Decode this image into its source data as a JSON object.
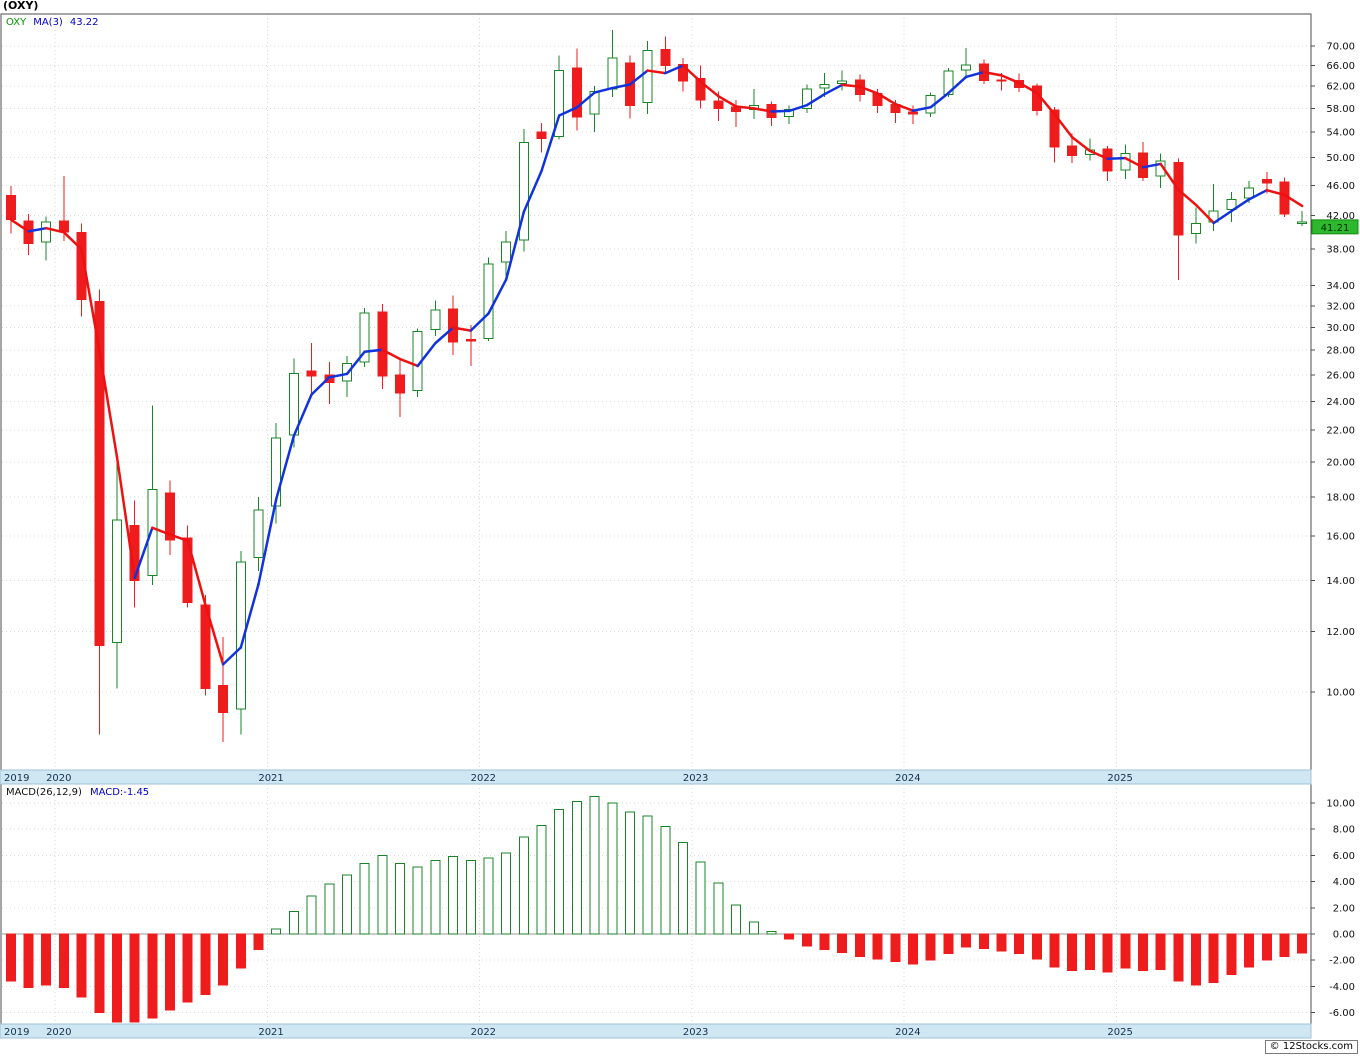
{
  "title": "(OXY)",
  "footer": "© 12Stocks.com",
  "price_panel": {
    "legend": {
      "symbol": "OXY",
      "ma_label": "MA(3)",
      "ma_value": "43.22"
    },
    "last_price_badge": "41.21"
  },
  "macd_panel": {
    "params_label": "MACD(26,12,9)",
    "value_label": "MACD:-1.45"
  },
  "x_axis_years": [
    "2019",
    "2020",
    "2021",
    "2022",
    "2023",
    "2024",
    "2025"
  ],
  "colors": {
    "up": "#1a8428",
    "down": "#ee1c1c",
    "ma_up": "#1133dd",
    "ma_down": "#ee1111",
    "badge_bg": "#2db82d",
    "badge_border": "#148a14",
    "badge_text": "#002b00",
    "band_bg": "#cfe6f3",
    "band_border": "#9fc3d6",
    "band_text": "#15314d",
    "grid": "#d9d9d9",
    "panel_border": "#4d4d4d",
    "axis_text": "#111111",
    "zero_line": "#9a9a9a",
    "legend_symbol": "#009900",
    "legend_ma": "#0000cc",
    "macd_value": "#0000cc"
  },
  "chart_data": [
    {
      "type": "candlestick",
      "title": "OXY monthly candlesticks with MA(3) overlay",
      "y_axis": {
        "scale": "log",
        "ticks": [
          70,
          66,
          62,
          58,
          54,
          50,
          46,
          42,
          38,
          34,
          32,
          30,
          28,
          26,
          24,
          22,
          20,
          18,
          16,
          14,
          12,
          10
        ]
      },
      "ma_period": 3,
      "last_close": 41.21,
      "months": [
        "2019-10",
        "2019-11",
        "2019-12",
        "2020-01",
        "2020-02",
        "2020-03",
        "2020-04",
        "2020-05",
        "2020-06",
        "2020-07",
        "2020-08",
        "2020-09",
        "2020-10",
        "2020-11",
        "2020-12",
        "2021-01",
        "2021-02",
        "2021-03",
        "2021-04",
        "2021-05",
        "2021-06",
        "2021-07",
        "2021-08",
        "2021-09",
        "2021-10",
        "2021-11",
        "2021-12",
        "2022-01",
        "2022-02",
        "2022-03",
        "2022-04",
        "2022-05",
        "2022-06",
        "2022-07",
        "2022-08",
        "2022-09",
        "2022-10",
        "2022-11",
        "2022-12",
        "2023-01",
        "2023-02",
        "2023-03",
        "2023-04",
        "2023-05",
        "2023-06",
        "2023-07",
        "2023-08",
        "2023-09",
        "2023-10",
        "2023-11",
        "2023-12",
        "2024-01",
        "2024-02",
        "2024-03",
        "2024-04",
        "2024-05",
        "2024-06",
        "2024-07",
        "2024-08",
        "2024-09",
        "2024-10",
        "2024-11",
        "2024-12",
        "2025-01",
        "2025-02",
        "2025-03",
        "2025-04",
        "2025-05",
        "2025-06",
        "2025-07",
        "2025-08",
        "2025-09",
        "2025-10",
        "2025-11"
      ],
      "ohlc": [
        [
          44.6,
          45.9,
          39.8,
          41.5
        ],
        [
          41.3,
          42.2,
          37.3,
          38.6
        ],
        [
          38.8,
          41.9,
          36.7,
          41.2
        ],
        [
          41.3,
          47.3,
          38.9,
          40.0
        ],
        [
          39.9,
          41.0,
          31.0,
          32.6
        ],
        [
          32.4,
          33.6,
          8.8,
          11.5
        ],
        [
          11.6,
          20.4,
          10.1,
          16.8
        ],
        [
          16.5,
          17.8,
          12.9,
          14.0
        ],
        [
          14.2,
          23.7,
          13.8,
          18.4
        ],
        [
          18.2,
          18.9,
          15.1,
          15.8
        ],
        [
          15.9,
          16.5,
          12.9,
          13.1
        ],
        [
          13.0,
          13.4,
          9.9,
          10.1
        ],
        [
          10.2,
          11.8,
          8.6,
          9.4
        ],
        [
          9.5,
          15.3,
          8.8,
          14.8
        ],
        [
          15.0,
          18.0,
          14.4,
          17.3
        ],
        [
          17.5,
          22.5,
          16.6,
          21.5
        ],
        [
          21.7,
          27.3,
          20.9,
          26.1
        ],
        [
          26.3,
          28.6,
          24.6,
          25.9
        ],
        [
          26.0,
          27.0,
          23.8,
          25.4
        ],
        [
          25.5,
          27.5,
          24.3,
          26.9
        ],
        [
          27.0,
          31.8,
          26.6,
          31.3
        ],
        [
          31.4,
          32.2,
          24.9,
          25.9
        ],
        [
          26.0,
          27.2,
          22.9,
          24.6
        ],
        [
          24.8,
          29.9,
          24.3,
          29.6
        ],
        [
          29.8,
          32.5,
          29.2,
          31.6
        ],
        [
          31.7,
          33.0,
          27.6,
          28.7
        ],
        [
          28.9,
          30.2,
          26.7,
          28.8
        ],
        [
          29.0,
          37.0,
          28.8,
          36.3
        ],
        [
          36.5,
          40.1,
          35.0,
          38.8
        ],
        [
          39.0,
          54.5,
          37.7,
          52.3
        ],
        [
          54.0,
          55.5,
          50.8,
          53.0
        ],
        [
          53.3,
          68.0,
          52.8,
          65.0
        ],
        [
          65.5,
          69.5,
          54.3,
          56.5
        ],
        [
          57.0,
          62.0,
          54.0,
          61.0
        ],
        [
          61.5,
          73.5,
          60.0,
          67.5
        ],
        [
          66.5,
          68.0,
          56.3,
          58.5
        ],
        [
          59.0,
          71.0,
          57.0,
          69.0
        ],
        [
          69.3,
          72.0,
          64.5,
          66.0
        ],
        [
          66.2,
          67.5,
          61.0,
          63.0
        ],
        [
          63.5,
          66.0,
          58.0,
          59.5
        ],
        [
          59.3,
          61.0,
          55.8,
          58.0
        ],
        [
          58.2,
          59.5,
          54.8,
          57.5
        ],
        [
          57.8,
          61.5,
          56.2,
          58.5
        ],
        [
          58.7,
          59.2,
          55.0,
          56.4
        ],
        [
          56.6,
          58.5,
          55.3,
          57.8
        ],
        [
          58.0,
          62.3,
          57.2,
          61.5
        ],
        [
          61.7,
          64.5,
          60.0,
          62.3
        ],
        [
          62.5,
          65.0,
          61.2,
          63.0
        ],
        [
          63.2,
          64.2,
          59.2,
          60.5
        ],
        [
          60.7,
          61.5,
          57.2,
          58.5
        ],
        [
          58.7,
          59.5,
          55.5,
          57.3
        ],
        [
          57.4,
          58.5,
          55.3,
          57.0
        ],
        [
          57.2,
          60.8,
          56.5,
          60.3
        ],
        [
          60.5,
          65.5,
          60.0,
          64.9
        ],
        [
          65.1,
          69.6,
          63.6,
          66.1
        ],
        [
          66.3,
          67.2,
          62.4,
          63.1
        ],
        [
          63.2,
          64.5,
          61.2,
          63.0
        ],
        [
          63.1,
          64.4,
          60.9,
          61.8
        ],
        [
          62.0,
          62.5,
          56.8,
          57.6
        ],
        [
          57.7,
          58.2,
          49.3,
          51.6
        ],
        [
          51.8,
          53.8,
          49.2,
          50.3
        ],
        [
          50.5,
          53.0,
          49.6,
          51.2
        ],
        [
          51.3,
          51.8,
          46.6,
          48.0
        ],
        [
          48.2,
          52.0,
          46.9,
          50.6
        ],
        [
          50.7,
          52.4,
          46.6,
          47.1
        ],
        [
          47.3,
          50.6,
          45.6,
          49.5
        ],
        [
          49.3,
          49.9,
          34.6,
          39.6
        ],
        [
          39.8,
          43.0,
          38.6,
          41.0
        ],
        [
          41.2,
          46.2,
          40.1,
          42.6
        ],
        [
          42.8,
          45.1,
          41.2,
          44.1
        ],
        [
          44.3,
          46.6,
          43.6,
          45.6
        ],
        [
          46.8,
          47.9,
          44.9,
          46.3
        ],
        [
          46.5,
          47.1,
          41.8,
          42.2
        ],
        [
          41.0,
          42.6,
          40.7,
          41.21
        ]
      ]
    },
    {
      "type": "bar",
      "title": "MACD(26,12,9) histogram",
      "y_axis": {
        "scale": "linear",
        "ticks": [
          10,
          8,
          6,
          4,
          2,
          0,
          -2,
          -4,
          -6
        ]
      },
      "last_value": -1.45,
      "values": [
        -3.6,
        -4.1,
        -3.9,
        -4.1,
        -4.8,
        -6.0,
        -6.7,
        -6.9,
        -6.4,
        -5.8,
        -5.2,
        -4.6,
        -3.9,
        -2.6,
        -1.2,
        0.4,
        1.7,
        2.9,
        3.8,
        4.5,
        5.4,
        6.0,
        5.4,
        5.1,
        5.6,
        5.9,
        5.6,
        5.8,
        6.2,
        7.4,
        8.3,
        9.5,
        10.1,
        10.5,
        10.0,
        9.3,
        9.0,
        8.2,
        7.0,
        5.5,
        3.9,
        2.2,
        0.9,
        0.2,
        -0.4,
        -0.9,
        -1.2,
        -1.4,
        -1.7,
        -1.9,
        -2.1,
        -2.3,
        -2.0,
        -1.5,
        -1.0,
        -1.1,
        -1.3,
        -1.5,
        -1.9,
        -2.5,
        -2.8,
        -2.7,
        -2.9,
        -2.6,
        -2.8,
        -2.7,
        -3.6,
        -3.9,
        -3.7,
        -3.1,
        -2.5,
        -2.0,
        -1.7,
        -1.45
      ]
    }
  ]
}
